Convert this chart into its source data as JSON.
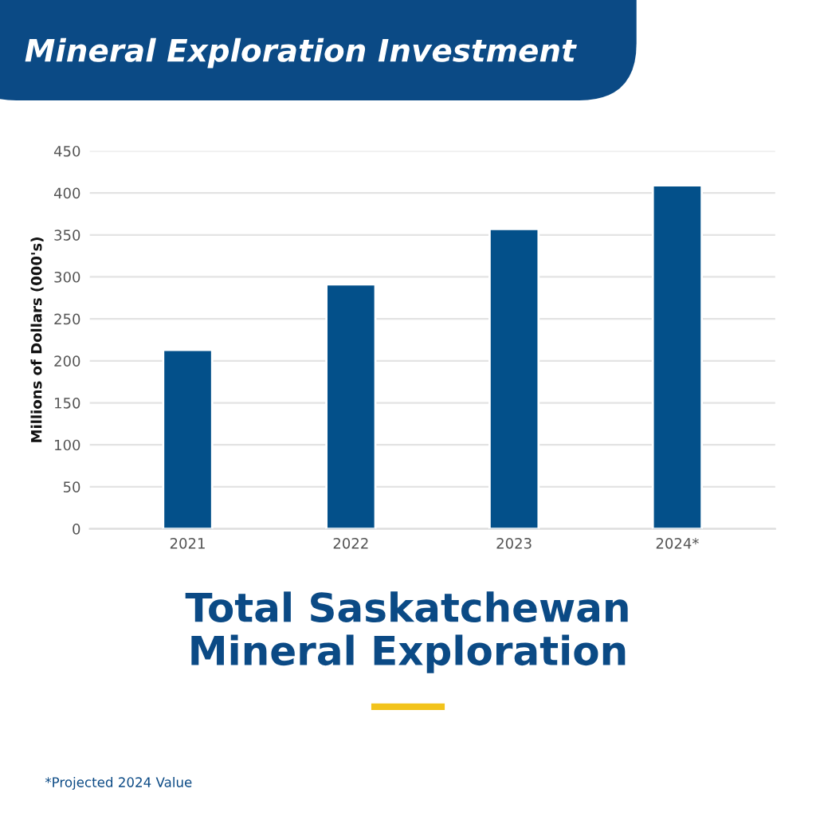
{
  "chart_data": {
    "type": "bar",
    "title": "Mineral Exploration Investment",
    "subtitle": "Total Saskatchewan\nMineral Exploration",
    "ylabel": "Millions of Dollars (000's)",
    "categories": [
      "2021",
      "2022",
      "2023",
      "2024*"
    ],
    "values": [
      213,
      291,
      357,
      409
    ],
    "color": "#03508a",
    "ylim": [
      0,
      450
    ],
    "yticks": [
      0,
      50,
      100,
      150,
      200,
      250,
      300,
      350,
      400,
      450
    ],
    "grid": "y",
    "annotations": [
      "*Projected 2024 Value"
    ]
  }
}
